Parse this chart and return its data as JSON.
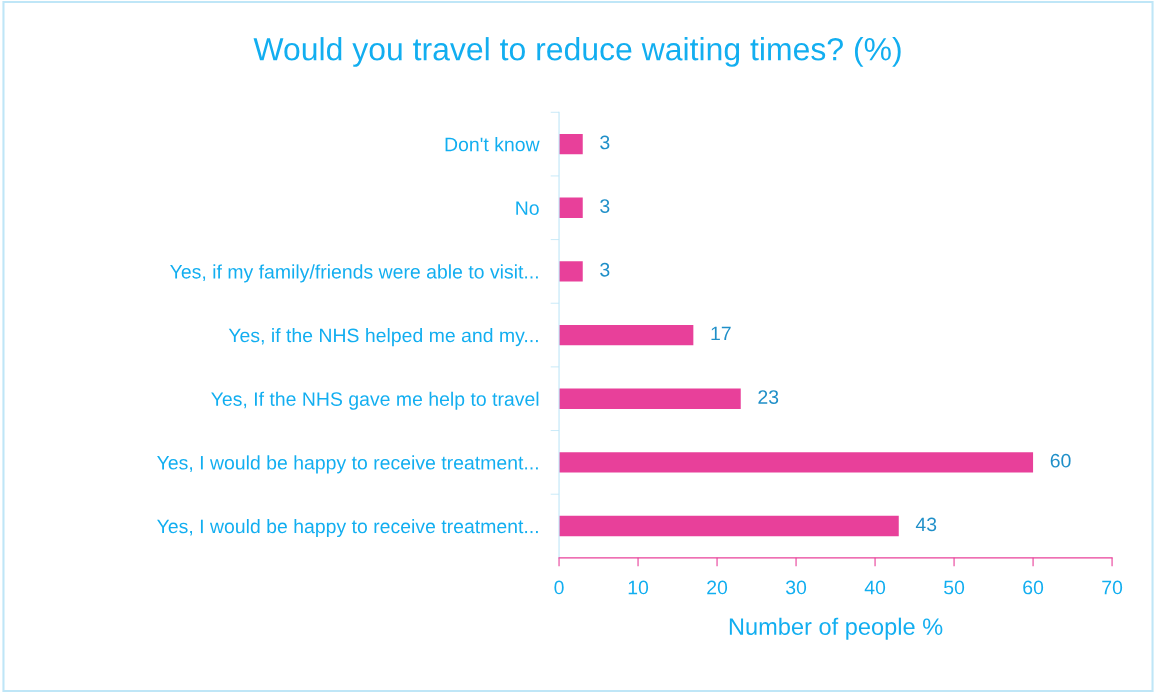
{
  "chart_data": {
    "type": "bar",
    "orientation": "horizontal",
    "title": "Would you travel to reduce waiting times? (%)",
    "xlabel": "Number of people %",
    "categories": [
      "Don't know",
      "No",
      "Yes, if my family/friends were able to visit...",
      "Yes, if the NHS helped me and my...",
      "Yes, If the NHS gave me help to travel",
      "Yes, I would be happy to receive treatment...",
      "Yes, I would be happy to receive treatment..."
    ],
    "values": [
      3,
      3,
      3,
      17,
      23,
      60,
      43
    ],
    "color": "#e8409a",
    "data_labels": true,
    "xlim": [
      0,
      70
    ],
    "xticks": [
      0,
      10,
      20,
      30,
      40,
      50,
      60,
      70
    ],
    "grid": false,
    "legend": false
  }
}
